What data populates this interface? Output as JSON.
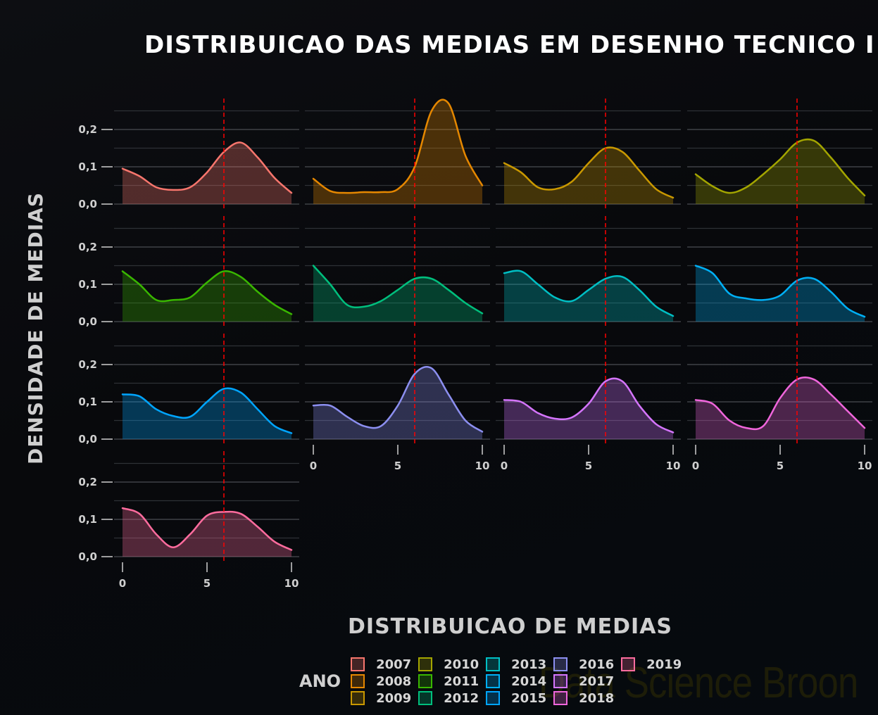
{
  "title": "DISTRIBUICAO DAS MEDIAS EM DESENHO TECNICO I",
  "ytitle": "DENSIDADE DE MEDIAS",
  "xtitle": "DISTRIBUICAO DE MEDIAS",
  "legend": {
    "title": "ANO",
    "items": [
      {
        "label": "2007",
        "color": "#f8766d"
      },
      {
        "label": "2008",
        "color": "#e58700"
      },
      {
        "label": "2009",
        "color": "#c99800"
      },
      {
        "label": "2010",
        "color": "#a3a500"
      },
      {
        "label": "2011",
        "color": "#39b600"
      },
      {
        "label": "2012",
        "color": "#00bf7d"
      },
      {
        "label": "2013",
        "color": "#00bfc4"
      },
      {
        "label": "2014",
        "color": "#00b0f6"
      },
      {
        "label": "2015",
        "color": "#00a5ff"
      },
      {
        "label": "2016",
        "color": "#8c8ff0"
      },
      {
        "label": "2017",
        "color": "#d575fe"
      },
      {
        "label": "2018",
        "color": "#f066dc"
      },
      {
        "label": "2019",
        "color": "#ff6c9e"
      }
    ]
  },
  "watermark": "Data Science Broon",
  "chart_data": {
    "type": "area",
    "title": "DISTRIBUICAO DAS MEDIAS EM DESENHO TECNICO I",
    "xlabel": "DISTRIBUICAO DE MEDIAS",
    "ylabel": "DENSIDADE DE MEDIAS",
    "facet_layout": {
      "rows": 4,
      "cols": 4
    },
    "xlim": [
      0,
      10
    ],
    "ylim": [
      0,
      0.25
    ],
    "x_ticks": [
      "0",
      "5",
      "10"
    ],
    "y_ticks": [
      "0.0",
      "0.1",
      "0.2"
    ],
    "reference_line": {
      "x": 6,
      "color": "#ff0000",
      "style": "dashed"
    },
    "x": [
      0,
      1,
      2,
      3,
      4,
      5,
      6,
      7,
      8,
      9,
      10
    ],
    "series": [
      {
        "name": "2007",
        "values": [
          0.095,
          0.075,
          0.045,
          0.038,
          0.045,
          0.085,
          0.14,
          0.165,
          0.125,
          0.07,
          0.03
        ]
      },
      {
        "name": "2008",
        "values": [
          0.068,
          0.035,
          0.03,
          0.032,
          0.032,
          0.04,
          0.1,
          0.25,
          0.27,
          0.13,
          0.05
        ]
      },
      {
        "name": "2009",
        "values": [
          0.11,
          0.085,
          0.045,
          0.04,
          0.06,
          0.11,
          0.15,
          0.14,
          0.09,
          0.04,
          0.017
        ]
      },
      {
        "name": "2010",
        "values": [
          0.08,
          0.048,
          0.03,
          0.045,
          0.08,
          0.12,
          0.165,
          0.17,
          0.125,
          0.07,
          0.023
        ]
      },
      {
        "name": "2011",
        "values": [
          0.135,
          0.1,
          0.058,
          0.058,
          0.065,
          0.105,
          0.135,
          0.12,
          0.08,
          0.045,
          0.02
        ]
      },
      {
        "name": "2012",
        "values": [
          0.15,
          0.1,
          0.045,
          0.04,
          0.055,
          0.085,
          0.115,
          0.115,
          0.085,
          0.05,
          0.022
        ]
      },
      {
        "name": "2013",
        "values": [
          0.13,
          0.135,
          0.1,
          0.065,
          0.055,
          0.085,
          0.115,
          0.12,
          0.085,
          0.04,
          0.015
        ]
      },
      {
        "name": "2014",
        "values": [
          0.15,
          0.13,
          0.075,
          0.062,
          0.058,
          0.07,
          0.11,
          0.115,
          0.08,
          0.035,
          0.013
        ]
      },
      {
        "name": "2015",
        "values": [
          0.12,
          0.115,
          0.08,
          0.062,
          0.06,
          0.1,
          0.135,
          0.125,
          0.08,
          0.035,
          0.016
        ]
      },
      {
        "name": "2016",
        "values": [
          0.09,
          0.09,
          0.06,
          0.035,
          0.035,
          0.09,
          0.175,
          0.19,
          0.12,
          0.05,
          0.02
        ]
      },
      {
        "name": "2017",
        "values": [
          0.105,
          0.1,
          0.07,
          0.055,
          0.058,
          0.095,
          0.155,
          0.155,
          0.09,
          0.04,
          0.018
        ]
      },
      {
        "name": "2018",
        "values": [
          0.105,
          0.095,
          0.05,
          0.03,
          0.035,
          0.11,
          0.16,
          0.16,
          0.12,
          0.075,
          0.03
        ]
      },
      {
        "name": "2019",
        "values": [
          0.13,
          0.115,
          0.06,
          0.025,
          0.06,
          0.11,
          0.12,
          0.115,
          0.08,
          0.04,
          0.018
        ]
      }
    ]
  }
}
